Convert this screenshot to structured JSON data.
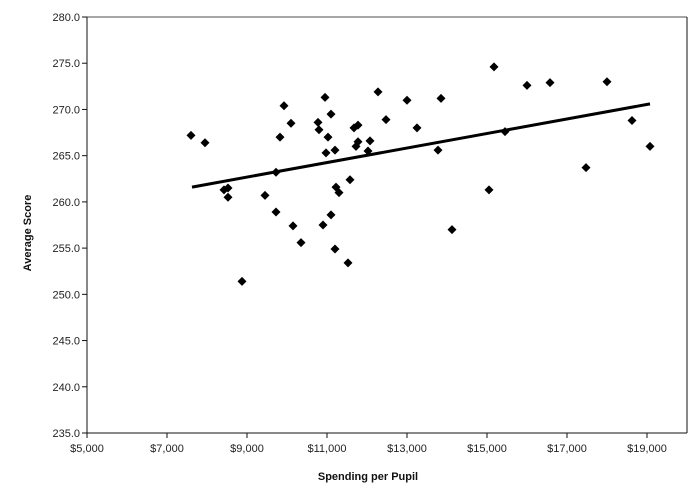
{
  "chart_data": {
    "type": "scatter",
    "title": "",
    "xlabel": "Spending per Pupil",
    "ylabel": "Average Score",
    "xlim": [
      5000,
      20000
    ],
    "ylim": [
      235,
      280
    ],
    "x_ticks": [
      5000,
      7000,
      9000,
      11000,
      13000,
      15000,
      17000,
      19000
    ],
    "x_tick_labels": [
      "$5,000",
      "$7,000",
      "$9,000",
      "$11,000",
      "$13,000",
      "$15,000",
      "$17,000",
      "$19,000"
    ],
    "y_ticks": [
      235,
      240,
      245,
      250,
      255,
      260,
      265,
      270,
      275,
      280
    ],
    "y_tick_labels": [
      "235.0",
      "240.0",
      "245.0",
      "250.0",
      "255.0",
      "260.0",
      "265.0",
      "270.0",
      "275.0",
      "280.0"
    ],
    "grid": false,
    "legend": null,
    "marker": "diamond",
    "marker_color": "#000000",
    "points": [
      [
        7600,
        267.2
      ],
      [
        7950,
        266.4
      ],
      [
        8425,
        261.3
      ],
      [
        8525,
        261.5
      ],
      [
        8525,
        260.5
      ],
      [
        8875,
        251.4
      ],
      [
        9450,
        260.7
      ],
      [
        9725,
        258.9
      ],
      [
        9725,
        263.2
      ],
      [
        9825,
        267.0
      ],
      [
        9925,
        270.4
      ],
      [
        10100,
        268.5
      ],
      [
        10150,
        257.4
      ],
      [
        10350,
        255.6
      ],
      [
        10775,
        268.6
      ],
      [
        10800,
        267.8
      ],
      [
        10900,
        257.5
      ],
      [
        10950,
        271.3
      ],
      [
        10975,
        265.3
      ],
      [
        11025,
        267.0
      ],
      [
        11100,
        269.5
      ],
      [
        11100,
        258.6
      ],
      [
        11200,
        265.6
      ],
      [
        11200,
        254.9
      ],
      [
        11225,
        261.6
      ],
      [
        11300,
        261.0
      ],
      [
        11525,
        253.4
      ],
      [
        11575,
        262.4
      ],
      [
        11675,
        268.0
      ],
      [
        11775,
        268.3
      ],
      [
        11775,
        266.5
      ],
      [
        11725,
        266.0
      ],
      [
        12075,
        266.6
      ],
      [
        12025,
        265.5
      ],
      [
        12275,
        271.9
      ],
      [
        12475,
        268.9
      ],
      [
        13000,
        271.0
      ],
      [
        13250,
        268.0
      ],
      [
        13775,
        265.6
      ],
      [
        13850,
        271.2
      ],
      [
        14125,
        257.0
      ],
      [
        15050,
        261.3
      ],
      [
        15175,
        274.6
      ],
      [
        15450,
        267.6
      ],
      [
        16000,
        272.6
      ],
      [
        16575,
        272.9
      ],
      [
        17475,
        263.7
      ],
      [
        18000,
        273.0
      ],
      [
        18625,
        268.8
      ],
      [
        19075,
        266.0
      ]
    ],
    "trendline": {
      "type": "linear",
      "start": [
        7625,
        261.6
      ],
      "end": [
        19075,
        270.6
      ],
      "color": "#000000"
    }
  }
}
